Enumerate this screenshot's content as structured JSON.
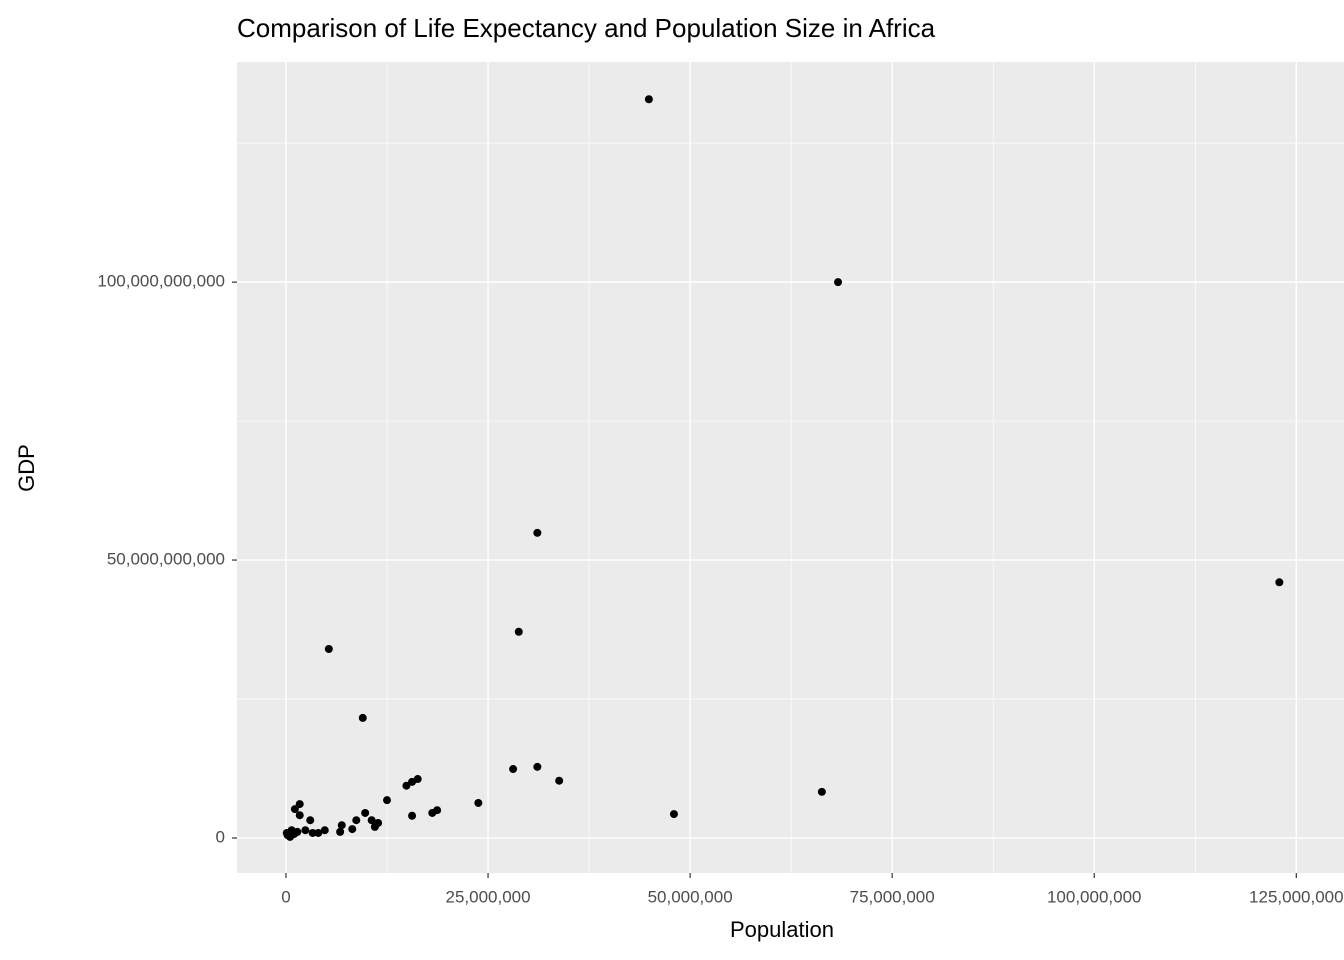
{
  "chart_data": {
    "type": "scatter",
    "title": "Comparison of Life Expectancy and Population Size in Africa",
    "x_label": "Population",
    "y_label": "GDP",
    "color": "#000000",
    "grid": true,
    "background": "#ebebeb",
    "xlim": [
      -6060000,
      130900000
    ],
    "ylim": [
      -6300000000,
      139600000000
    ],
    "xticks": [
      0,
      {
        "value": 25000000,
        "label": "25,000,000"
      },
      {
        "value": 50000000,
        "label": "50,000,000"
      },
      {
        "value": 75000000,
        "label": "75,000,000"
      },
      {
        "value": 100000000,
        "label": "100,000,000"
      },
      {
        "value": 125000000,
        "label": "125,000,000"
      }
    ],
    "yticks": [
      0,
      {
        "value": 50000000000,
        "label": "50,000,000,000"
      },
      {
        "value": 100000000000,
        "label": "100,000,000,000"
      }
    ],
    "x": [
      44900000,
      68300000,
      122900000,
      31100000,
      28800000,
      5300000,
      9500000,
      31100000,
      28100000,
      33800000,
      66300000,
      48000000,
      23800000,
      16300000,
      15600000,
      14900000,
      18700000,
      18100000,
      15600000,
      12500000,
      9800000,
      10600000,
      11400000,
      11000000,
      8700000,
      8200000,
      6900000,
      6700000,
      4800000,
      4000000,
      3000000,
      1700000,
      1100000,
      1700000,
      700000,
      200000,
      100000,
      1400000,
      2400000,
      3300000,
      500000,
      1000000
    ],
    "values": [
      132900000000,
      100000000000,
      46000000000,
      54900000000,
      37100000000,
      34000000000,
      21600000000,
      12800000000,
      12400000000,
      10300000000,
      8300000000,
      4300000000,
      6300000000,
      10600000000,
      10100000000,
      9400000000,
      5000000000,
      4500000000,
      4000000000,
      6800000000,
      4500000000,
      3200000000,
      2700000000,
      2000000000,
      3200000000,
      1600000000,
      2300000000,
      1100000000,
      1400000000,
      900000000,
      3200000000,
      6100000000,
      5200000000,
      4100000000,
      1400000000,
      500000000,
      900000000,
      1100000000,
      1400000000,
      900000000,
      200000000,
      700000000
    ]
  }
}
